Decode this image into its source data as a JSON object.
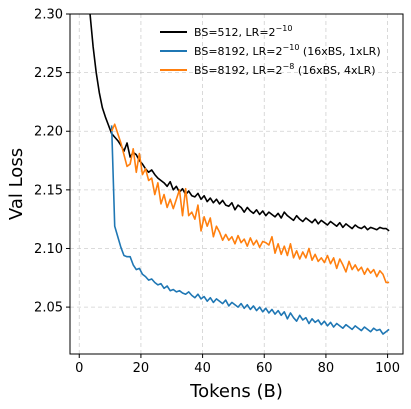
{
  "chart_data": {
    "type": "line",
    "xlabel": "Tokens (B)",
    "ylabel": "Val Loss",
    "xlim": [
      -3,
      105
    ],
    "ylim": [
      2.01,
      2.3
    ],
    "xticks": [
      0,
      20,
      40,
      60,
      80,
      100
    ],
    "yticks": [
      2.05,
      2.1,
      2.15,
      2.2,
      2.25,
      2.3
    ],
    "xtick_labels": [
      "0",
      "20",
      "40",
      "60",
      "80",
      "100"
    ],
    "ytick_labels": [
      "2.05",
      "2.10",
      "2.15",
      "2.20",
      "2.25",
      "2.30"
    ],
    "grid": true,
    "legend_position": "top-right",
    "series": [
      {
        "name": "BS=512, LR=2^{-10}",
        "legend": {
          "main": "BS=512, LR=2",
          "sup": "−10",
          "tail": ""
        },
        "color": "#000000",
        "x": [
          3.5,
          4.5,
          5.5,
          6.5,
          7.5,
          8.5,
          9.5,
          10.5,
          11.5,
          12.5,
          13.5,
          14.5,
          15.5,
          16.5,
          17.5,
          18.5,
          19.5,
          20.5,
          21.5,
          22.5,
          23.5,
          24.5,
          25.5,
          26.5,
          27.5,
          28.5,
          29.5,
          30.5,
          31.5,
          32.5,
          33.5,
          34.5,
          35.5,
          36.5,
          37.5,
          38.5,
          39.5,
          40.5,
          41.5,
          42.5,
          43.5,
          44.5,
          45.5,
          46.5,
          47.5,
          48.5,
          49.5,
          50.5,
          51.5,
          52.5,
          53.5,
          54.5,
          55.5,
          56.5,
          57.5,
          58.5,
          59.5,
          60.5,
          61.5,
          62.5,
          63.5,
          64.5,
          65.5,
          66.5,
          67.5,
          68.5,
          69.5,
          70.5,
          71.5,
          72.5,
          73.5,
          74.5,
          75.5,
          76.5,
          77.5,
          78.5,
          79.5,
          80.5,
          81.5,
          82.5,
          83.5,
          84.5,
          85.5,
          86.5,
          87.5,
          88.5,
          89.5,
          90.5,
          91.5,
          92.5,
          93.5,
          94.5,
          95.5,
          96.5,
          97.5,
          98.5,
          99.5,
          100.5
        ],
        "y": [
          2.3,
          2.272,
          2.25,
          2.233,
          2.22,
          2.212,
          2.205,
          2.198,
          2.195,
          2.192,
          2.188,
          2.183,
          2.19,
          2.178,
          2.182,
          2.18,
          2.175,
          2.172,
          2.168,
          2.165,
          2.167,
          2.163,
          2.16,
          2.158,
          2.156,
          2.153,
          2.157,
          2.15,
          2.153,
          2.148,
          2.151,
          2.146,
          2.149,
          2.145,
          2.144,
          2.147,
          2.142,
          2.145,
          2.14,
          2.143,
          2.139,
          2.142,
          2.138,
          2.141,
          2.137,
          2.136,
          2.139,
          2.133,
          2.137,
          2.135,
          2.131,
          2.135,
          2.132,
          2.13,
          2.133,
          2.129,
          2.132,
          2.128,
          2.131,
          2.129,
          2.127,
          2.13,
          2.126,
          2.131,
          2.128,
          2.126,
          2.124,
          2.128,
          2.125,
          2.123,
          2.126,
          2.124,
          2.122,
          2.125,
          2.121,
          2.124,
          2.122,
          2.12,
          2.123,
          2.121,
          2.119,
          2.122,
          2.118,
          2.121,
          2.119,
          2.117,
          2.12,
          2.118,
          2.117,
          2.119,
          2.116,
          2.118,
          2.117,
          2.116,
          2.118,
          2.117,
          2.117,
          2.115
        ]
      },
      {
        "name": "BS=8192, LR=2^{-10} (16xBS, 1xLR)",
        "legend": {
          "main": "BS=8192, LR=2",
          "sup": "−10",
          "tail": " (16xBS, 1xLR)"
        },
        "color": "#1f77b4",
        "x": [
          10.5,
          11.5,
          12.5,
          13.5,
          14.5,
          15.5,
          16.5,
          17.5,
          18.5,
          19.5,
          20.5,
          21.5,
          22.5,
          23.5,
          24.5,
          25.5,
          26.5,
          27.5,
          28.5,
          29.5,
          30.5,
          31.5,
          32.5,
          33.5,
          34.5,
          35.5,
          36.5,
          37.5,
          38.5,
          39.5,
          40.5,
          41.5,
          42.5,
          43.5,
          44.5,
          45.5,
          46.5,
          47.5,
          48.5,
          49.5,
          50.5,
          51.5,
          52.5,
          53.5,
          54.5,
          55.5,
          56.5,
          57.5,
          58.5,
          59.5,
          60.5,
          61.5,
          62.5,
          63.5,
          64.5,
          65.5,
          66.5,
          67.5,
          68.5,
          69.5,
          70.5,
          71.5,
          72.5,
          73.5,
          74.5,
          75.5,
          76.5,
          77.5,
          78.5,
          79.5,
          80.5,
          81.5,
          82.5,
          83.5,
          84.5,
          85.5,
          86.5,
          87.5,
          88.5,
          89.5,
          90.5,
          91.5,
          92.5,
          93.5,
          94.5,
          95.5,
          96.5,
          97.5,
          98.5,
          99.5,
          100.5
        ],
        "y": [
          2.205,
          2.119,
          2.11,
          2.101,
          2.094,
          2.093,
          2.093,
          2.086,
          2.082,
          2.083,
          2.078,
          2.076,
          2.073,
          2.074,
          2.071,
          2.069,
          2.07,
          2.066,
          2.068,
          2.064,
          2.065,
          2.063,
          2.064,
          2.062,
          2.061,
          2.063,
          2.06,
          2.058,
          2.061,
          2.057,
          2.059,
          2.055,
          2.058,
          2.054,
          2.057,
          2.055,
          2.053,
          2.056,
          2.051,
          2.054,
          2.052,
          2.05,
          2.053,
          2.049,
          2.052,
          2.048,
          2.051,
          2.047,
          2.05,
          2.046,
          2.049,
          2.045,
          2.048,
          2.044,
          2.047,
          2.043,
          2.046,
          2.04,
          2.045,
          2.041,
          2.038,
          2.043,
          2.039,
          2.041,
          2.036,
          2.04,
          2.037,
          2.039,
          2.035,
          2.038,
          2.034,
          2.037,
          2.033,
          2.036,
          2.034,
          2.032,
          2.035,
          2.033,
          2.031,
          2.034,
          2.032,
          2.03,
          2.033,
          2.031,
          2.029,
          2.032,
          2.03,
          2.031,
          2.027,
          2.029,
          2.031
        ]
      },
      {
        "name": "BS=8192, LR=2^{-8} (16xBS, 4xLR)",
        "legend": {
          "main": "BS=8192, LR=2",
          "sup": "−8",
          "tail": " (16xBS, 4xLR)"
        },
        "color": "#ff7f0e",
        "x": [
          10.5,
          11.5,
          12.5,
          13.5,
          14.5,
          15.5,
          16.5,
          17.5,
          18.5,
          19.5,
          20.5,
          21.5,
          22.5,
          23.5,
          24.5,
          25.5,
          26.5,
          27.5,
          28.5,
          29.5,
          30.5,
          31.5,
          32.5,
          33.5,
          34.5,
          35.5,
          36.5,
          37.5,
          38.5,
          39.5,
          40.5,
          41.5,
          42.5,
          43.5,
          44.5,
          45.5,
          46.5,
          47.5,
          48.5,
          49.5,
          50.5,
          51.5,
          52.5,
          53.5,
          54.5,
          55.5,
          56.5,
          57.5,
          58.5,
          59.5,
          60.5,
          61.5,
          62.5,
          63.5,
          64.5,
          65.5,
          66.5,
          67.5,
          68.5,
          69.5,
          70.5,
          71.5,
          72.5,
          73.5,
          74.5,
          75.5,
          76.5,
          77.5,
          78.5,
          79.5,
          80.5,
          81.5,
          82.5,
          83.5,
          84.5,
          85.5,
          86.5,
          87.5,
          88.5,
          89.5,
          90.5,
          91.5,
          92.5,
          93.5,
          94.5,
          95.5,
          96.5,
          97.5,
          98.5,
          99.5,
          100.5
        ],
        "y": [
          2.2,
          2.206,
          2.198,
          2.19,
          2.18,
          2.17,
          2.172,
          2.185,
          2.165,
          2.181,
          2.163,
          2.168,
          2.158,
          2.16,
          2.146,
          2.156,
          2.138,
          2.146,
          2.135,
          2.142,
          2.134,
          2.142,
          2.15,
          2.128,
          2.151,
          2.128,
          2.131,
          2.125,
          2.137,
          2.115,
          2.127,
          2.119,
          2.126,
          2.11,
          2.119,
          2.114,
          2.107,
          2.112,
          2.107,
          2.11,
          2.104,
          2.111,
          2.105,
          2.108,
          2.102,
          2.109,
          2.103,
          2.107,
          2.101,
          2.106,
          2.105,
          2.103,
          2.11,
          2.096,
          2.104,
          2.095,
          2.102,
          2.094,
          2.104,
          2.092,
          2.098,
          2.091,
          2.097,
          2.092,
          2.1,
          2.09,
          2.095,
          2.089,
          2.092,
          2.088,
          2.094,
          2.087,
          2.092,
          2.083,
          2.091,
          2.086,
          2.08,
          2.089,
          2.082,
          2.086,
          2.081,
          2.084,
          2.078,
          2.083,
          2.079,
          2.082,
          2.076,
          2.081,
          2.078,
          2.071,
          2.071
        ]
      }
    ]
  }
}
